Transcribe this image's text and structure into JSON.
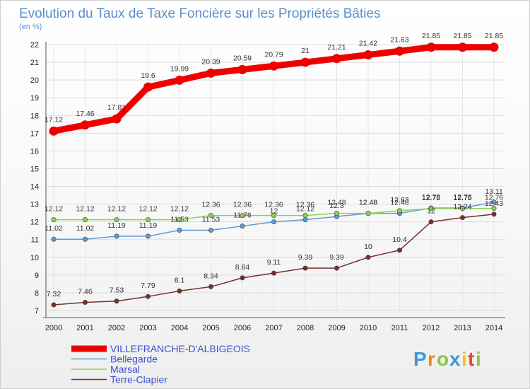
{
  "chart_data": {
    "type": "line",
    "title": "Evolution du Taux de Taxe Foncière sur les Propriétés Bâties",
    "subtitle": "(en %)",
    "xlabel": "",
    "ylabel": "",
    "x": [
      "2000",
      "2001",
      "2002",
      "2003",
      "2004",
      "2005",
      "2006",
      "2007",
      "2008",
      "2009",
      "2010",
      "2011",
      "2012",
      "2013",
      "2014"
    ],
    "ylim": [
      7,
      22
    ],
    "yticks": [
      7,
      8,
      9,
      10,
      11,
      12,
      13,
      14,
      15,
      16,
      17,
      18,
      19,
      20,
      21,
      22
    ],
    "grid": true,
    "legend_position": "bottom-left",
    "series": [
      {
        "name": "VILLEFRANCHE-D'ALBIGEOIS",
        "color": "#ee0000",
        "values": [
          17.12,
          17.46,
          17.81,
          19.6,
          19.99,
          20.39,
          20.59,
          20.79,
          21,
          21.21,
          21.42,
          21.63,
          21.85,
          21.85,
          21.85
        ],
        "labels": [
          "17.12",
          "17.46",
          "17.81",
          "19.6",
          "19.99",
          "20.39",
          "20.59",
          "20.79",
          "21",
          "21.21",
          "21.42",
          "21.63",
          "21.85",
          "21.85",
          "21.85"
        ]
      },
      {
        "name": "Bellegarde",
        "color": "#5b9bd5",
        "values": [
          11.02,
          11.02,
          11.19,
          11.19,
          11.53,
          11.53,
          11.76,
          12,
          12.12,
          12.3,
          12.48,
          12.48,
          12.78,
          12.78,
          13.11
        ],
        "labels": [
          "11.02",
          "11.02",
          "11.19",
          "11.19",
          "11.53",
          "11.53",
          "11.76",
          "12",
          "12.12",
          "12.3",
          "12.48",
          "12.48",
          "12.78",
          "12.78",
          "13.11"
        ]
      },
      {
        "name": "Marsal",
        "color": "#8fd14f",
        "values": [
          12.12,
          12.12,
          12.12,
          12.12,
          12.12,
          12.36,
          12.36,
          12.36,
          12.36,
          12.48,
          12.48,
          12.63,
          12.75,
          12.75,
          12.76
        ],
        "labels": [
          "12.12",
          "12.12",
          "12.12",
          "12.12",
          "12.12",
          "12.36",
          "12.36",
          "12.36",
          "12.36",
          "12.48",
          "12.48",
          "12.63",
          "12.75",
          "12.75",
          "12.76"
        ]
      },
      {
        "name": "Terre-Clapier",
        "color": "#7a2e2e",
        "values": [
          7.32,
          7.46,
          7.53,
          7.79,
          8.1,
          8.34,
          8.84,
          9.11,
          9.39,
          9.39,
          10,
          10.4,
          12,
          12.24,
          12.43
        ],
        "labels": [
          "7.32",
          "7.46",
          "7.53",
          "7.79",
          "8.1",
          "8.34",
          "8.84",
          "9.11",
          "9.39",
          "9.39",
          "10",
          "10.4",
          "12",
          "12.24",
          "12.43"
        ]
      }
    ]
  },
  "logo": {
    "letters": [
      "P",
      "r",
      "o",
      "x",
      "i",
      "t",
      "i"
    ],
    "colors": [
      "#3a9ad9",
      "#f08a1c",
      "#8cc63f",
      "#3a9ad9",
      "#f0c419",
      "#e8452c",
      "#8cc63f"
    ]
  }
}
